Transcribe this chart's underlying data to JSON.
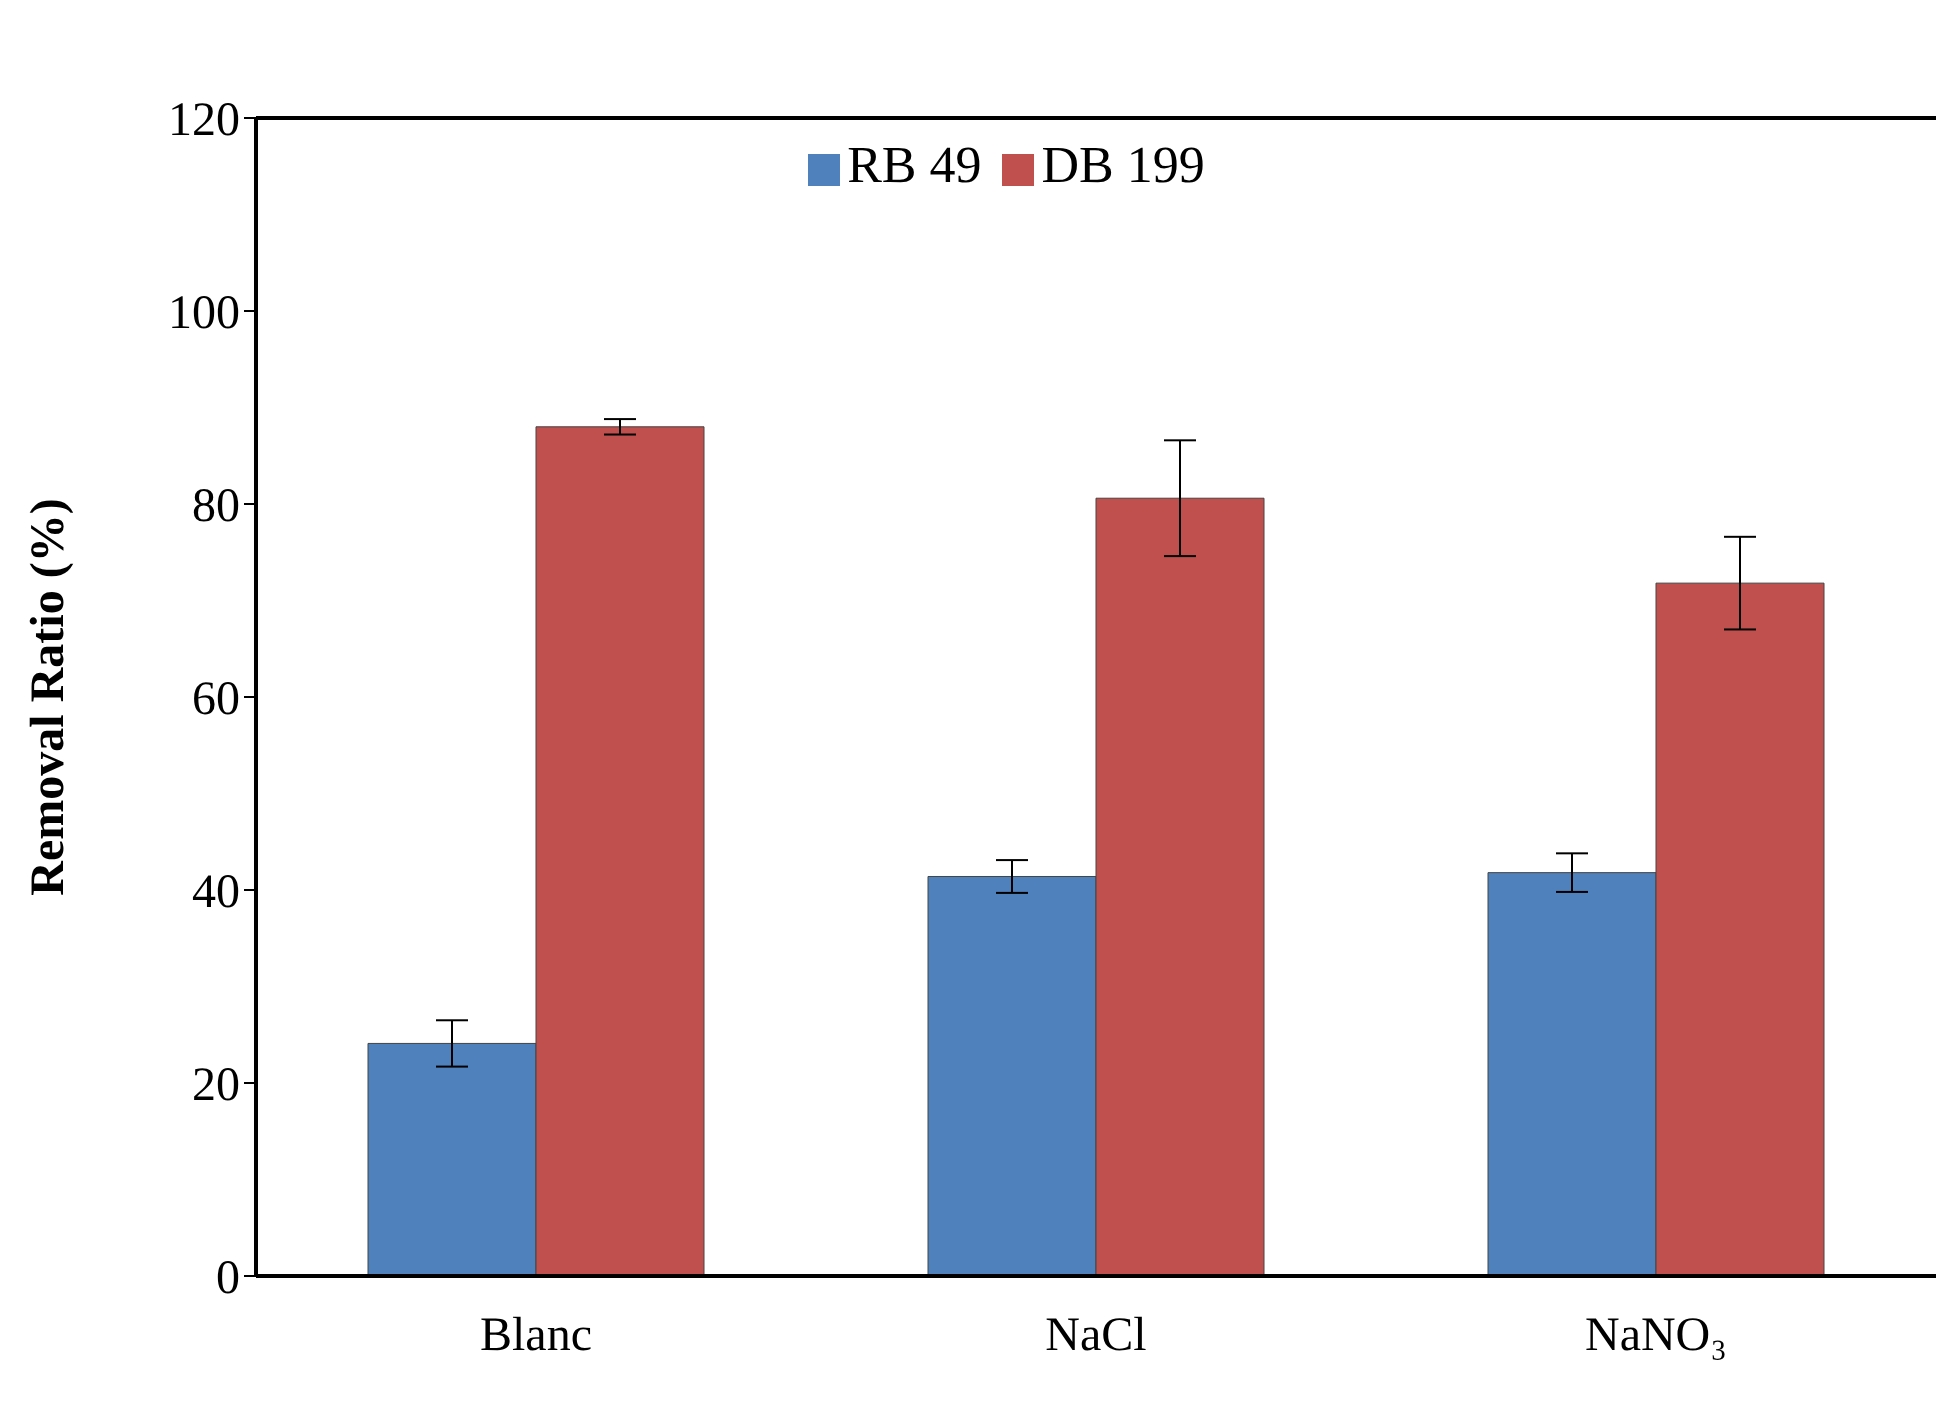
{
  "chart_data": {
    "type": "bar",
    "ylabel": "Removal Ratio (%)",
    "categories": [
      "Blanc",
      "NaCl",
      "NaNO₃"
    ],
    "series": [
      {
        "name": "RB 49",
        "color": "#4f81bd",
        "values": [
          24.1,
          41.4,
          41.8
        ],
        "errors": [
          2.4,
          1.7,
          2
        ]
      },
      {
        "name": "DB 199",
        "color": "#c0504d",
        "values": [
          88,
          80.6,
          71.8
        ],
        "errors": [
          0.8,
          6,
          4.8
        ]
      }
    ],
    "ylim": [
      0,
      120
    ],
    "yticks": [
      0,
      20,
      40,
      60,
      80,
      100,
      120
    ],
    "grid": false,
    "legend": "top"
  }
}
